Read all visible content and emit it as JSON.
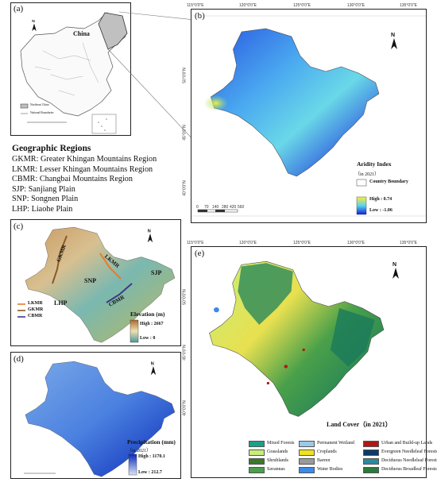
{
  "panels": {
    "a": {
      "label": "(a)",
      "country": "China",
      "legend": [
        "Northeast China",
        "National Boundaries"
      ]
    },
    "b": {
      "label": "(b)",
      "legend_title": "Aridity Index",
      "legend_sub": "（in 2021）",
      "boundary": "Country Boundary",
      "high": "High : 0.74",
      "low": "Low : -1.06",
      "scale": [
        "0",
        "70",
        "140",
        "280",
        "420",
        "560"
      ],
      "top_ticks": [
        "115°0'0\"E",
        "120°0'0\"E",
        "125°0'0\"E",
        "130°0'0\"E",
        "135°0'0\"E"
      ],
      "left_ticks": [
        "50°0'0\"N",
        "45°0'0\"N",
        "40°0'0\"N"
      ],
      "colors": {
        "high": "#ffee30",
        "mid": "#5ad2f0",
        "low": "#1020d8"
      }
    },
    "c": {
      "label": "(c)",
      "regions": [
        "GKMR",
        "LKMR",
        "SNP",
        "SJP",
        "LHP",
        "CBMR"
      ],
      "legend_title": "Elevation (m)",
      "high": "High : 2667",
      "low": "Low : 0",
      "lines": [
        {
          "name": "LKMR",
          "color": "#e87a2a"
        },
        {
          "name": "GKMR",
          "color": "#8a5a2a"
        },
        {
          "name": "CBMR",
          "color": "#3a3a8a"
        }
      ]
    },
    "d": {
      "label": "(d)",
      "legend_title": "Precipitation (mm)",
      "legend_sub": "（in 2021）",
      "high": "High : 1170.1",
      "low": "Low : 212.7"
    },
    "e": {
      "label": "(e)",
      "legend_title": "Land Cover（in 2021）",
      "classes": [
        {
          "name": "Mixed Forests",
          "color": "#1aa08a"
        },
        {
          "name": "Grasslands",
          "color": "#c8ee78"
        },
        {
          "name": "Shrublands",
          "color": "#3a7a2a"
        },
        {
          "name": "Savannas",
          "color": "#4aa04a"
        },
        {
          "name": "Permanent Wetland",
          "color": "#9ac8e8"
        },
        {
          "name": "Croplands",
          "color": "#f0e020"
        },
        {
          "name": "Barren",
          "color": "#9a9a9a"
        },
        {
          "name": "Water Bodies",
          "color": "#3a8ae8"
        },
        {
          "name": "Urban and Build-up Lands",
          "color": "#b01818"
        },
        {
          "name": "Evergreen Needleleaf Forests",
          "color": "#0a3a6a"
        },
        {
          "name": "Deciduous Needleleaf Forests",
          "color": "#2a8aa0"
        },
        {
          "name": "Deciduous Broadleaf Forests",
          "color": "#2a7a3a"
        }
      ],
      "top_ticks": [
        "115°0'0\"E",
        "120°0'0\"E",
        "125°0'0\"E",
        "130°0'0\"E",
        "135°0'0\"E"
      ],
      "left_ticks": [
        "50°0'0\"N",
        "45°0'0\"N",
        "40°0'0\"N"
      ]
    }
  },
  "regions_info": {
    "title": "Geographic Regions",
    "rows": [
      "GKMR: Greater Khingan Mountains Region",
      "LKMR: Lesser Khingan Mountains Region",
      "CBMR: Changbai Mountains Region",
      "SJP: Sanjiang Plain",
      "SNP: Songnen Plain",
      "LHP: Liaohe Plain"
    ]
  },
  "north": "N"
}
